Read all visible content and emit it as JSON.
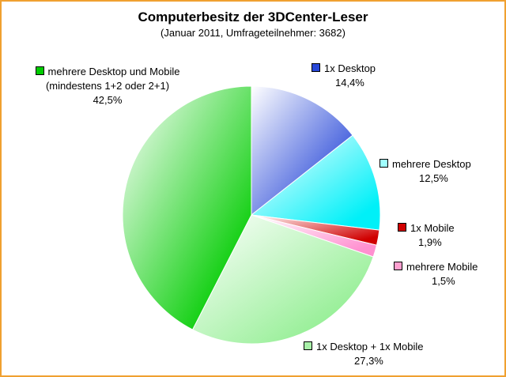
{
  "chart_data": {
    "type": "pie",
    "title": "Computerbesitz der 3DCenter-Leser",
    "subtitle": "(Januar 2011, Umfrageteilnehmer: 3682)",
    "slices": [
      {
        "label": "1x Desktop",
        "value": 14.4,
        "value_label": "14,4%",
        "color": "#2848d8"
      },
      {
        "label": "mehrere Desktop",
        "value": 12.5,
        "value_label": "12,5%",
        "color": "#00f0f8"
      },
      {
        "label": "1x Mobile",
        "value": 1.9,
        "value_label": "1,9%",
        "color": "#d00000"
      },
      {
        "label": "mehrere Mobile",
        "value": 1.5,
        "value_label": "1,5%",
        "color": "#ff90d0"
      },
      {
        "label": "1x Desktop + 1x Mobile",
        "value": 27.3,
        "value_label": "27,3%",
        "color": "#90ee90"
      },
      {
        "label": "mehrere Desktop und Mobile",
        "label_line2": "(mindestens 1+2 oder 2+1)",
        "value": 42.5,
        "value_label": "42,5%",
        "color": "#00cc00"
      }
    ]
  }
}
